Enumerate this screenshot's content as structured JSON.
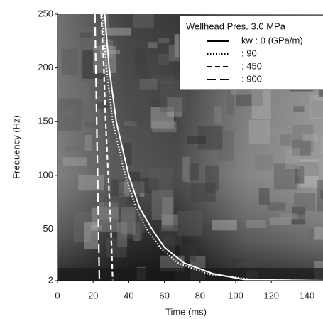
{
  "chart_data": {
    "type": "line",
    "xlabel": "Time (ms)",
    "ylabel": "Frequency (Hz)",
    "xlim": [
      0,
      149
    ],
    "ylim": [
      2,
      250
    ],
    "xticks": [
      0,
      20,
      40,
      60,
      80,
      100,
      120,
      140
    ],
    "yticks": [
      2,
      50,
      100,
      150,
      200,
      250
    ],
    "legend_title": "Wellhead Pres. 3.0 MPa",
    "legend_position": "upper right",
    "legend_color": "#000000",
    "series": [
      {
        "name": "kw : 0 (GPa/m)",
        "color": "#ffffff",
        "style": "solid",
        "x": [
          26.5,
          29,
          33,
          40,
          46,
          53,
          60,
          71,
          87,
          105,
          149
        ],
        "values": [
          250,
          200,
          150,
          100,
          70,
          50,
          33,
          18.5,
          8.6,
          3,
          2
        ]
      },
      {
        "name": ": 90",
        "color": "#ffffff",
        "style": "dotted",
        "x": [
          25,
          27.5,
          31,
          38,
          44,
          50,
          58,
          68,
          85,
          110,
          149
        ],
        "values": [
          250,
          200,
          150,
          100,
          70,
          50,
          32,
          18,
          8,
          3,
          2
        ]
      },
      {
        "name": ": 450",
        "color": "#ffffff",
        "style": "dashed",
        "x": [
          24.5,
          26,
          27,
          28.5,
          30,
          31
        ],
        "values": [
          250,
          200,
          150,
          100,
          50,
          2
        ]
      },
      {
        "name": ": 900",
        "color": "#ffffff",
        "style": "longdash",
        "x": [
          21,
          21.5,
          22,
          22.5,
          23,
          23.5
        ],
        "values": [
          250,
          200,
          150,
          100,
          50,
          2
        ]
      }
    ]
  }
}
